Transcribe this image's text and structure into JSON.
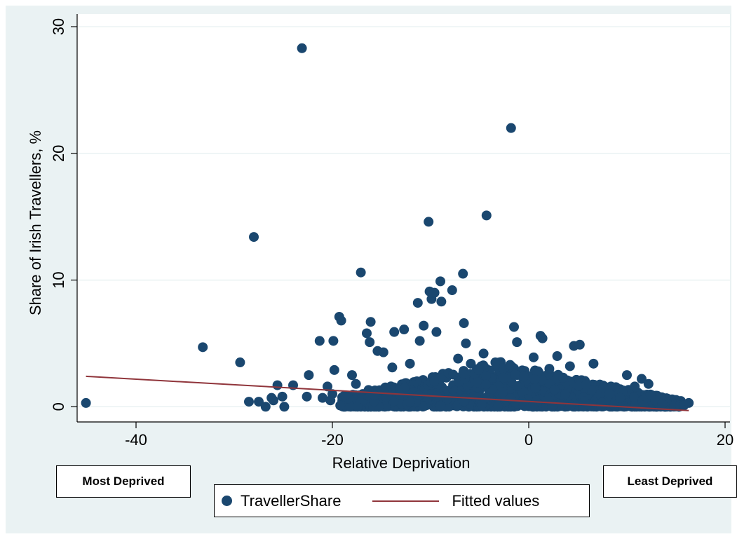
{
  "chart_data": {
    "type": "scatter",
    "title": "",
    "xlabel": "Relative Deprivation",
    "ylabel": "Share of Irish Travellers, %",
    "xlim": [
      -46,
      20.5
    ],
    "ylim": [
      -1.2,
      31
    ],
    "xticks": [
      -40,
      -20,
      0,
      20
    ],
    "yticks": [
      0,
      10,
      20,
      30
    ],
    "grid": "horizontal",
    "legend_position": "bottom",
    "colors": {
      "points": "#1a476f",
      "fit": "#90353b",
      "panel": "#eaf2f3"
    },
    "series": [
      {
        "name": "TravellerShare",
        "type": "scatter",
        "points": [
          [
            -45.1,
            0.3
          ],
          [
            -33.2,
            4.7
          ],
          [
            -29.4,
            3.5
          ],
          [
            -28.5,
            0.4
          ],
          [
            -28.0,
            13.4
          ],
          [
            -27.5,
            0.4
          ],
          [
            -26.8,
            0.0
          ],
          [
            -26.2,
            0.7
          ],
          [
            -26.0,
            0.5
          ],
          [
            -25.6,
            1.7
          ],
          [
            -25.1,
            0.8
          ],
          [
            -24.9,
            0.0
          ],
          [
            -24.0,
            1.7
          ],
          [
            -23.1,
            28.3
          ],
          [
            -22.6,
            0.8
          ],
          [
            -22.4,
            2.5
          ],
          [
            -21.3,
            5.2
          ],
          [
            -21.0,
            0.7
          ],
          [
            -20.5,
            1.6
          ],
          [
            -20.0,
            1.0
          ],
          [
            -20.2,
            0.5
          ],
          [
            -19.8,
            2.9
          ],
          [
            -19.9,
            5.2
          ],
          [
            -19.3,
            7.1
          ],
          [
            -19.1,
            6.8
          ],
          [
            -19.2,
            0.1
          ],
          [
            -18.7,
            0.9
          ],
          [
            -18.0,
            2.5
          ],
          [
            -17.6,
            1.8
          ],
          [
            -17.1,
            10.6
          ],
          [
            -16.5,
            5.8
          ],
          [
            -16.1,
            6.7
          ],
          [
            -16.2,
            5.1
          ],
          [
            -15.7,
            0.9
          ],
          [
            -15.4,
            4.4
          ],
          [
            -14.8,
            4.3
          ],
          [
            -13.7,
            5.9
          ],
          [
            -13.9,
            3.1
          ],
          [
            -12.7,
            6.1
          ],
          [
            -12.1,
            3.4
          ],
          [
            -11.3,
            8.2
          ],
          [
            -11.1,
            5.2
          ],
          [
            -10.7,
            6.4
          ],
          [
            -10.2,
            14.6
          ],
          [
            -10.1,
            9.1
          ],
          [
            -9.9,
            8.5
          ],
          [
            -9.6,
            9.0
          ],
          [
            -9.4,
            5.9
          ],
          [
            -9.0,
            9.9
          ],
          [
            -8.9,
            8.3
          ],
          [
            -7.8,
            9.2
          ],
          [
            -7.2,
            3.8
          ],
          [
            -6.7,
            10.5
          ],
          [
            -6.6,
            6.6
          ],
          [
            -6.4,
            5.0
          ],
          [
            -5.9,
            3.4
          ],
          [
            -5.1,
            2.9
          ],
          [
            -4.6,
            4.2
          ],
          [
            -4.3,
            15.1
          ],
          [
            -3.4,
            3.5
          ],
          [
            -2.6,
            2.3
          ],
          [
            -1.9,
            3.3
          ],
          [
            -1.8,
            22.0
          ],
          [
            -1.5,
            6.3
          ],
          [
            -1.2,
            5.1
          ],
          [
            -0.5,
            2.4
          ],
          [
            0.5,
            3.9
          ],
          [
            1.2,
            5.6
          ],
          [
            1.4,
            5.4
          ],
          [
            2.1,
            3.0
          ],
          [
            2.9,
            4.0
          ],
          [
            3.5,
            2.3
          ],
          [
            4.2,
            3.2
          ],
          [
            4.6,
            4.8
          ],
          [
            5.2,
            4.9
          ],
          [
            5.8,
            1.7
          ],
          [
            6.6,
            3.4
          ],
          [
            7.6,
            1.5
          ],
          [
            8.2,
            1.0
          ],
          [
            9.3,
            0.7
          ],
          [
            10.0,
            2.5
          ],
          [
            10.8,
            1.6
          ],
          [
            11.5,
            2.2
          ],
          [
            12.2,
            1.8
          ],
          [
            12.9,
            0.5
          ],
          [
            13.6,
            0.2
          ],
          [
            14.8,
            0.1
          ],
          [
            15.4,
            0.1
          ],
          [
            15.8,
            0.1
          ],
          [
            16.3,
            0.3
          ]
        ]
      },
      {
        "name": "Fitted values",
        "type": "line",
        "x": [
          -45.1,
          16.3
        ],
        "y": [
          2.4,
          -0.3
        ]
      }
    ]
  },
  "labels": {
    "most_deprived": "Most Deprived",
    "least_deprived": "Least Deprived"
  },
  "legend": {
    "series1": "TravellerShare",
    "series2": "Fitted values"
  }
}
